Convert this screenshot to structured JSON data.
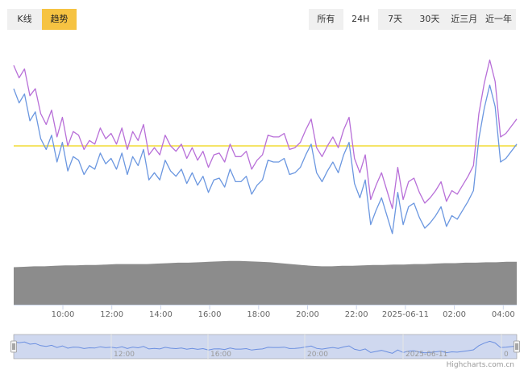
{
  "mode_tabs": {
    "kline": "K线",
    "trend": "趋势"
  },
  "range_tabs": [
    "所有",
    "24H",
    "7天",
    "30天",
    "近三月",
    "近一年"
  ],
  "active_range": "24H",
  "credit": "Highcharts.com.cn",
  "colors": {
    "purple_line": "#b86fd8",
    "blue_line": "#6b97e0",
    "baseline": "#f2dc36",
    "volume": "#8c8c8c",
    "navigator_fill": "#cfd8ef",
    "navigator_line": "#6b8fe0",
    "accent": "#f6c342"
  },
  "chart_data": {
    "type": "line",
    "x_ticks": [
      "10:00",
      "12:00",
      "14:00",
      "16:00",
      "18:00",
      "20:00",
      "22:00",
      "2025-06-11",
      "02:00",
      "04:00"
    ],
    "navigator_ticks": [
      "12:00",
      "16:00",
      "20:00",
      "2025-06-11",
      "0"
    ],
    "baseline_level": 0.5,
    "ylim": [
      0,
      1
    ],
    "series": [
      {
        "color": "#b86fd8",
        "values": [
          0.95,
          0.88,
          0.93,
          0.78,
          0.82,
          0.68,
          0.62,
          0.7,
          0.55,
          0.66,
          0.5,
          0.58,
          0.56,
          0.48,
          0.53,
          0.51,
          0.6,
          0.54,
          0.57,
          0.51,
          0.6,
          0.48,
          0.58,
          0.53,
          0.62,
          0.45,
          0.49,
          0.45,
          0.56,
          0.5,
          0.47,
          0.51,
          0.43,
          0.49,
          0.42,
          0.47,
          0.38,
          0.45,
          0.46,
          0.41,
          0.51,
          0.44,
          0.44,
          0.47,
          0.37,
          0.42,
          0.45,
          0.56,
          0.55,
          0.55,
          0.57,
          0.48,
          0.49,
          0.52,
          0.59,
          0.65,
          0.49,
          0.44,
          0.5,
          0.55,
          0.49,
          0.59,
          0.66,
          0.43,
          0.35,
          0.45,
          0.2,
          0.28,
          0.35,
          0.25,
          0.15,
          0.38,
          0.2,
          0.3,
          0.32,
          0.24,
          0.18,
          0.21,
          0.25,
          0.3,
          0.19,
          0.25,
          0.23,
          0.28,
          0.33,
          0.39,
          0.68,
          0.85,
          0.98,
          0.86,
          0.55,
          0.57,
          0.61,
          0.65
        ]
      },
      {
        "color": "#6b97e0",
        "values": [
          0.82,
          0.74,
          0.79,
          0.64,
          0.69,
          0.54,
          0.48,
          0.56,
          0.41,
          0.52,
          0.36,
          0.44,
          0.42,
          0.34,
          0.39,
          0.37,
          0.46,
          0.4,
          0.43,
          0.37,
          0.46,
          0.34,
          0.44,
          0.39,
          0.48,
          0.31,
          0.35,
          0.31,
          0.42,
          0.36,
          0.33,
          0.37,
          0.29,
          0.35,
          0.28,
          0.33,
          0.24,
          0.31,
          0.32,
          0.27,
          0.37,
          0.3,
          0.3,
          0.33,
          0.23,
          0.28,
          0.31,
          0.42,
          0.41,
          0.41,
          0.43,
          0.34,
          0.35,
          0.38,
          0.45,
          0.51,
          0.35,
          0.3,
          0.36,
          0.41,
          0.35,
          0.45,
          0.52,
          0.29,
          0.21,
          0.31,
          0.06,
          0.14,
          0.21,
          0.11,
          0.01,
          0.24,
          0.06,
          0.16,
          0.18,
          0.1,
          0.04,
          0.07,
          0.11,
          0.16,
          0.05,
          0.11,
          0.09,
          0.14,
          0.19,
          0.25,
          0.54,
          0.71,
          0.84,
          0.72,
          0.41,
          0.43,
          0.47,
          0.51
        ]
      },
      {
        "name": "",
        "type": "area",
        "color": "#8c8c8c",
        "values": [
          0.83,
          0.84,
          0.85,
          0.85,
          0.86,
          0.87,
          0.87,
          0.88,
          0.88,
          0.89,
          0.9,
          0.9,
          0.9,
          0.9,
          0.91,
          0.92,
          0.93,
          0.93,
          0.94,
          0.95,
          0.96,
          0.97,
          0.97,
          0.96,
          0.95,
          0.94,
          0.92,
          0.9,
          0.88,
          0.86,
          0.85,
          0.85,
          0.86,
          0.86,
          0.87,
          0.88,
          0.88,
          0.89,
          0.89,
          0.9,
          0.9,
          0.91,
          0.92,
          0.92,
          0.93,
          0.93,
          0.94,
          0.94,
          0.95,
          0.95
        ]
      }
    ]
  }
}
